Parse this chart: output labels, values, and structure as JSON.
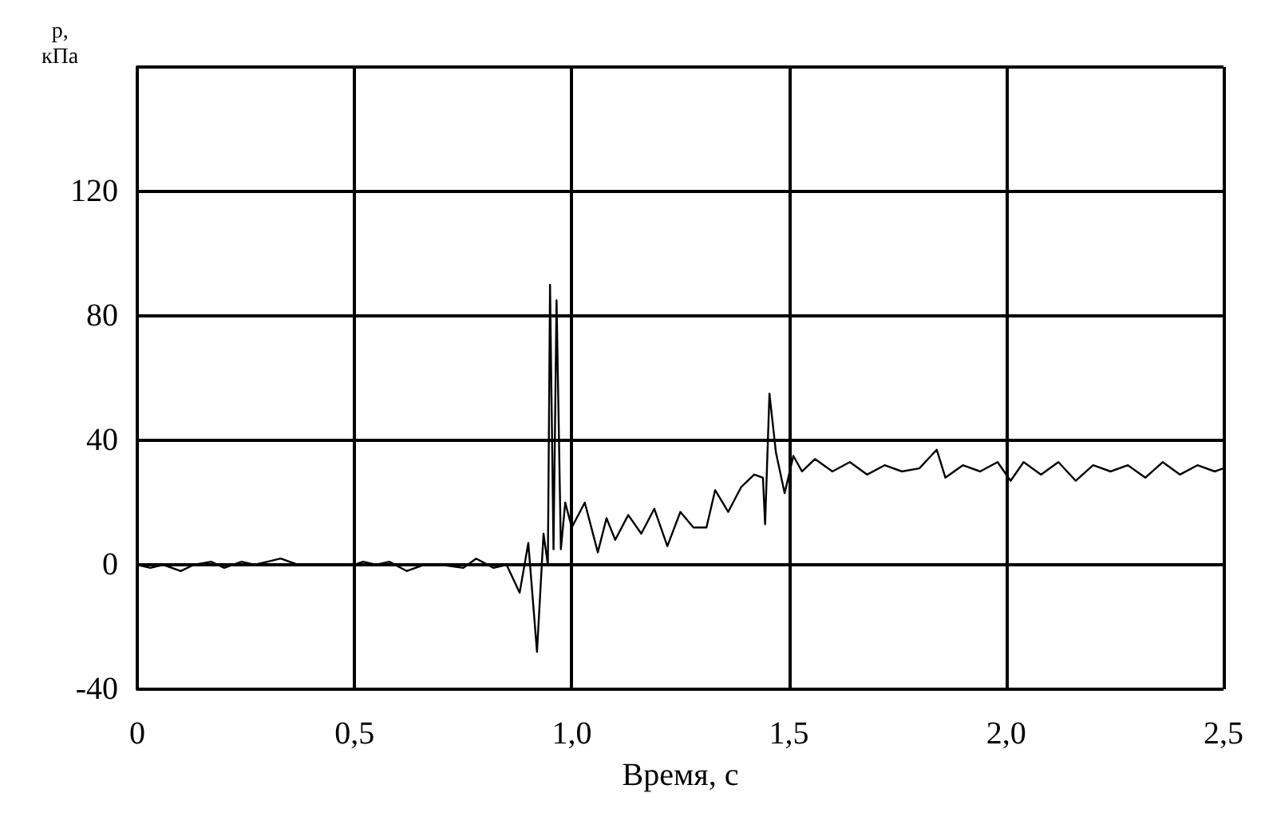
{
  "chart_data": {
    "type": "line",
    "xlabel": "Время, с",
    "ylabel": "p,\nкПа",
    "xlim": [
      0,
      2.5
    ],
    "xticks": [
      0,
      {
        "value": 0.5,
        "label": "0,5"
      },
      {
        "value": 1,
        "label": "1,0"
      },
      {
        "value": 1.5,
        "label": "1,5"
      },
      {
        "value": 2,
        "label": "2,0"
      },
      {
        "value": 2.5,
        "label": "2,5"
      }
    ],
    "ylim": [
      -40,
      160
    ],
    "yticks": [
      -40,
      0,
      40,
      80,
      120,
      {
        "value": 160,
        "label": null
      }
    ],
    "grid": true,
    "marker": "none",
    "line_style": "solid",
    "series": [
      {
        "color": "#000000",
        "x": [
          0,
          0.03,
          0.06,
          0.1,
          0.13,
          0.17,
          0.2,
          0.24,
          0.27,
          0.3,
          0.33,
          0.37,
          0.4,
          0.45,
          0.5,
          0.52,
          0.55,
          0.58,
          0.62,
          0.66,
          0.7,
          0.75,
          0.78,
          0.82,
          0.85,
          0.88,
          0.9,
          0.92,
          0.935,
          0.945,
          0.95,
          0.958,
          0.965,
          0.975,
          0.985,
          1.0,
          1.03,
          1.06,
          1.08,
          1.1,
          1.13,
          1.16,
          1.19,
          1.22,
          1.25,
          1.28,
          1.31,
          1.33,
          1.36,
          1.39,
          1.42,
          1.44,
          1.445,
          1.455,
          1.47,
          1.49,
          1.51,
          1.53,
          1.56,
          1.6,
          1.64,
          1.68,
          1.72,
          1.76,
          1.8,
          1.84,
          1.86,
          1.9,
          1.94,
          1.98,
          2.01,
          2.04,
          2.08,
          2.12,
          2.16,
          2.2,
          2.24,
          2.28,
          2.32,
          2.36,
          2.4,
          2.44,
          2.48,
          2.5
        ],
        "values": [
          0,
          -1,
          0,
          -2,
          0,
          1,
          -1,
          1,
          0,
          1,
          2,
          0,
          0,
          0,
          0,
          1,
          0,
          1,
          -2,
          0,
          0,
          -1,
          2,
          -1,
          0,
          -9,
          7,
          -28,
          10,
          0,
          90,
          5,
          85,
          5,
          20,
          12,
          20,
          4,
          15,
          8,
          16,
          10,
          18,
          6,
          17,
          12,
          12,
          24,
          17,
          25,
          29,
          28,
          13,
          55,
          36,
          23,
          35,
          30,
          34,
          30,
          33,
          29,
          32,
          30,
          31,
          37,
          28,
          32,
          30,
          33,
          27,
          33,
          29,
          33,
          27,
          32,
          30,
          32,
          28,
          33,
          29,
          32,
          30,
          31
        ]
      }
    ]
  }
}
